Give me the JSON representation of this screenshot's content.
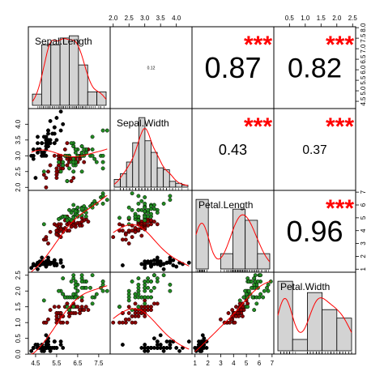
{
  "chart_data": {
    "type": "scatter",
    "variables": [
      "Sepal.Length",
      "Sepal.Width",
      "Petal.Length",
      "Petal.Width"
    ],
    "ranges": {
      "Sepal.Length": [
        4.3,
        7.9
      ],
      "Sepal.Width": [
        2.0,
        4.4
      ],
      "Petal.Length": [
        1.0,
        6.9
      ],
      "Petal.Width": [
        0.1,
        2.5
      ]
    },
    "axis_ticks": {
      "top": [
        {
          "column": "Sepal.Width",
          "labels": [
            "2.0",
            "2.5",
            "3.0",
            "3.5",
            "4.0"
          ]
        },
        {
          "column": "Petal.Width",
          "labels": [
            "0.5",
            "1.0",
            "1.5",
            "2.0",
            "2.5"
          ]
        }
      ],
      "bottom": [
        {
          "column": "Sepal.Length",
          "labels": [
            "4.5",
            "5.5",
            "6.5",
            "7.5"
          ]
        },
        {
          "column": "Petal.Length",
          "labels": [
            "1",
            "2",
            "3",
            "4",
            "5",
            "6",
            "7"
          ]
        }
      ],
      "right": [
        {
          "row": "Sepal.Length",
          "labels": [
            "4.5",
            "5.0",
            "5.5",
            "6.0",
            "6.5",
            "7.0",
            "7.5",
            "8.0"
          ]
        },
        {
          "row": "Petal.Length",
          "labels": [
            "1",
            "2",
            "3",
            "4",
            "5",
            "6",
            "7"
          ]
        }
      ],
      "left": [
        {
          "row": "Sepal.Width",
          "labels": [
            "2.0",
            "2.5",
            "3.0",
            "3.5",
            "4.0"
          ]
        },
        {
          "row": "Petal.Width",
          "labels": [
            "0.0",
            "0.5",
            "1.0",
            "1.5",
            "2.0",
            "2.5"
          ]
        }
      ]
    },
    "correlations": [
      {
        "row": "Sepal.Length",
        "col": "Sepal.Width",
        "value": "0.12",
        "stars": ""
      },
      {
        "row": "Sepal.Length",
        "col": "Petal.Length",
        "value": "0.87",
        "stars": "***"
      },
      {
        "row": "Sepal.Length",
        "col": "Petal.Width",
        "value": "0.82",
        "stars": "***"
      },
      {
        "row": "Sepal.Width",
        "col": "Petal.Length",
        "value": "0.43",
        "stars": "***"
      },
      {
        "row": "Sepal.Width",
        "col": "Petal.Width",
        "value": "0.37",
        "stars": "***"
      },
      {
        "row": "Petal.Length",
        "col": "Petal.Width",
        "value": "0.96",
        "stars": "***"
      }
    ],
    "histograms": {
      "Sepal.Length": {
        "breaks": [
          4.0,
          4.5,
          5.0,
          5.5,
          6.0,
          6.5,
          7.0,
          7.5,
          8.0
        ],
        "counts": [
          5,
          27,
          27,
          30,
          31,
          18,
          6,
          6
        ]
      },
      "Sepal.Width": {
        "breaks": [
          2.0,
          2.2,
          2.4,
          2.6,
          2.8,
          3.0,
          3.2,
          3.4,
          3.6,
          3.8,
          4.0,
          4.2,
          4.4
        ],
        "counts": [
          4,
          7,
          13,
          23,
          36,
          24,
          18,
          10,
          9,
          3,
          2,
          1
        ]
      },
      "Petal.Length": {
        "breaks": [
          1,
          2,
          3,
          4,
          5,
          6,
          7
        ],
        "counts": [
          50,
          0,
          11,
          43,
          35,
          11
        ]
      },
      "Petal.Width": {
        "breaks": [
          0.0,
          0.5,
          1.0,
          1.5,
          2.0,
          2.5
        ],
        "counts": [
          49,
          8,
          41,
          29,
          23
        ]
      }
    },
    "species_colors": {
      "setosa": "#000000",
      "versicolor": "#8b0000",
      "virginica": "#228b22"
    },
    "smooth_color": "#ff0000",
    "hist_fill": "#d3d3d3",
    "star_color": "#ff0000",
    "grid": false,
    "title": "",
    "legend": "none",
    "points": {
      "Sepal.Length": [
        5.1,
        4.9,
        4.7,
        4.6,
        5.0,
        5.4,
        4.6,
        5.0,
        4.4,
        4.9,
        5.4,
        4.8,
        4.8,
        4.3,
        5.8,
        5.7,
        5.4,
        5.1,
        5.7,
        5.1,
        5.4,
        5.1,
        4.6,
        5.1,
        4.8,
        5.0,
        5.0,
        5.2,
        5.2,
        4.7,
        4.8,
        5.4,
        5.2,
        5.5,
        4.9,
        5.0,
        5.5,
        4.9,
        4.4,
        5.1,
        5.0,
        4.5,
        4.4,
        5.0,
        5.1,
        4.8,
        5.1,
        4.6,
        5.3,
        5.0,
        7.0,
        6.4,
        6.9,
        5.5,
        6.5,
        5.7,
        6.3,
        4.9,
        6.6,
        5.2,
        5.0,
        5.9,
        6.0,
        6.1,
        5.6,
        6.7,
        5.6,
        5.8,
        6.2,
        5.6,
        5.9,
        6.1,
        6.3,
        6.1,
        6.4,
        6.6,
        6.8,
        6.7,
        6.0,
        5.7,
        5.5,
        5.5,
        5.8,
        6.0,
        5.4,
        6.0,
        6.7,
        6.3,
        5.6,
        5.5,
        5.5,
        6.1,
        5.8,
        5.0,
        5.6,
        5.7,
        5.7,
        6.2,
        5.1,
        5.7,
        6.3,
        5.8,
        7.1,
        6.3,
        6.5,
        7.6,
        4.9,
        7.3,
        6.7,
        7.2,
        6.5,
        6.4,
        6.8,
        5.7,
        5.8,
        6.4,
        6.5,
        7.7,
        7.7,
        6.0,
        6.9,
        5.6,
        7.7,
        6.3,
        6.7,
        7.2,
        6.2,
        6.1,
        6.4,
        7.2,
        7.4,
        7.9,
        6.4,
        6.3,
        6.1,
        7.7,
        6.3,
        6.4,
        6.0,
        6.9,
        6.7,
        6.9,
        5.8,
        6.8,
        6.7,
        6.7,
        6.3,
        6.5,
        6.2,
        5.9
      ],
      "Sepal.Width": [
        3.5,
        3.0,
        3.2,
        3.1,
        3.6,
        3.9,
        3.4,
        3.4,
        2.9,
        3.1,
        3.7,
        3.4,
        3.0,
        3.0,
        4.0,
        4.4,
        3.9,
        3.5,
        3.8,
        3.8,
        3.4,
        3.7,
        3.6,
        3.3,
        3.4,
        3.0,
        3.4,
        3.5,
        3.4,
        3.2,
        3.1,
        3.4,
        4.1,
        4.2,
        3.1,
        3.2,
        3.5,
        3.6,
        3.0,
        3.4,
        3.5,
        2.3,
        3.2,
        3.5,
        3.8,
        3.0,
        3.8,
        3.2,
        3.7,
        3.3,
        3.2,
        3.2,
        3.1,
        2.3,
        2.8,
        2.8,
        3.3,
        2.4,
        2.9,
        2.7,
        2.0,
        3.0,
        2.2,
        2.9,
        2.9,
        3.1,
        3.0,
        2.7,
        2.2,
        2.5,
        3.2,
        2.8,
        2.5,
        2.8,
        2.9,
        3.0,
        2.8,
        3.0,
        2.9,
        2.6,
        2.4,
        2.4,
        2.7,
        2.7,
        3.0,
        3.4,
        3.1,
        2.3,
        3.0,
        2.5,
        2.6,
        3.0,
        2.6,
        2.3,
        2.7,
        3.0,
        2.9,
        2.9,
        2.5,
        2.8,
        3.3,
        2.7,
        3.0,
        2.9,
        3.0,
        3.0,
        2.5,
        2.9,
        2.5,
        3.6,
        3.2,
        2.7,
        3.0,
        2.5,
        2.8,
        3.2,
        3.0,
        3.8,
        2.6,
        2.2,
        3.2,
        2.8,
        2.8,
        2.7,
        3.3,
        3.2,
        2.8,
        3.0,
        2.8,
        3.0,
        2.8,
        3.8,
        2.8,
        2.8,
        2.6,
        3.0,
        3.4,
        3.1,
        3.0,
        3.1,
        3.1,
        3.1,
        2.7,
        3.2,
        3.3,
        3.0,
        2.5,
        3.0,
        3.4,
        3.0
      ],
      "Petal.Length": [
        1.4,
        1.4,
        1.3,
        1.5,
        1.4,
        1.7,
        1.4,
        1.5,
        1.4,
        1.5,
        1.5,
        1.6,
        1.4,
        1.1,
        1.2,
        1.5,
        1.3,
        1.4,
        1.7,
        1.5,
        1.7,
        1.5,
        1.0,
        1.7,
        1.9,
        1.6,
        1.6,
        1.5,
        1.4,
        1.6,
        1.6,
        1.5,
        1.5,
        1.4,
        1.5,
        1.2,
        1.3,
        1.4,
        1.3,
        1.5,
        1.3,
        1.3,
        1.3,
        1.6,
        1.9,
        1.4,
        1.6,
        1.4,
        1.5,
        1.4,
        4.7,
        4.5,
        4.9,
        4.0,
        4.6,
        4.5,
        4.7,
        3.3,
        4.6,
        3.9,
        3.5,
        4.2,
        4.0,
        4.7,
        3.6,
        4.4,
        4.5,
        4.1,
        4.5,
        3.9,
        4.8,
        4.0,
        4.9,
        4.7,
        4.3,
        4.4,
        4.8,
        5.0,
        4.5,
        3.5,
        3.8,
        3.7,
        3.9,
        5.1,
        4.5,
        4.5,
        4.7,
        4.4,
        4.1,
        4.0,
        4.4,
        4.6,
        4.0,
        3.3,
        4.2,
        4.2,
        4.2,
        4.3,
        3.0,
        4.1,
        6.0,
        5.1,
        5.9,
        5.6,
        5.8,
        6.6,
        4.5,
        6.3,
        5.8,
        6.1,
        5.1,
        5.3,
        5.5,
        5.0,
        5.1,
        5.3,
        5.5,
        6.7,
        6.9,
        5.0,
        5.7,
        4.9,
        6.7,
        4.9,
        5.7,
        6.0,
        4.8,
        4.9,
        5.6,
        5.8,
        6.1,
        6.4,
        5.6,
        5.1,
        5.6,
        6.1,
        5.6,
        5.5,
        4.8,
        5.4,
        5.6,
        5.1,
        5.1,
        5.9,
        5.7,
        5.2,
        5.0,
        5.2,
        5.4,
        5.1
      ],
      "Petal.Width": [
        0.2,
        0.2,
        0.2,
        0.2,
        0.2,
        0.4,
        0.3,
        0.2,
        0.2,
        0.1,
        0.2,
        0.2,
        0.1,
        0.1,
        0.2,
        0.4,
        0.4,
        0.3,
        0.3,
        0.3,
        0.2,
        0.4,
        0.2,
        0.5,
        0.2,
        0.2,
        0.4,
        0.2,
        0.2,
        0.2,
        0.2,
        0.4,
        0.1,
        0.2,
        0.2,
        0.2,
        0.2,
        0.1,
        0.2,
        0.2,
        0.3,
        0.3,
        0.2,
        0.6,
        0.4,
        0.3,
        0.2,
        0.2,
        0.2,
        0.2,
        1.4,
        1.5,
        1.5,
        1.3,
        1.5,
        1.3,
        1.6,
        1.0,
        1.3,
        1.4,
        1.0,
        1.5,
        1.0,
        1.4,
        1.3,
        1.4,
        1.5,
        1.0,
        1.5,
        1.1,
        1.8,
        1.3,
        1.5,
        1.2,
        1.3,
        1.4,
        1.4,
        1.7,
        1.5,
        1.0,
        1.1,
        1.0,
        1.2,
        1.6,
        1.5,
        1.6,
        1.5,
        1.3,
        1.3,
        1.3,
        1.2,
        1.4,
        1.2,
        1.0,
        1.3,
        1.2,
        1.3,
        1.3,
        1.1,
        1.3,
        2.5,
        1.9,
        2.1,
        1.8,
        2.2,
        2.1,
        1.7,
        1.8,
        1.8,
        2.5,
        2.0,
        1.9,
        2.1,
        2.0,
        2.4,
        2.3,
        1.8,
        2.2,
        2.3,
        1.5,
        2.3,
        2.0,
        2.0,
        1.8,
        2.1,
        1.8,
        1.8,
        1.8,
        2.1,
        1.6,
        1.9,
        2.0,
        2.2,
        1.5,
        1.4,
        2.3,
        2.4,
        1.8,
        1.8,
        2.1,
        2.4,
        2.3,
        1.9,
        2.3,
        2.5,
        2.3,
        1.9,
        2.0,
        2.3,
        1.8
      ]
    }
  }
}
